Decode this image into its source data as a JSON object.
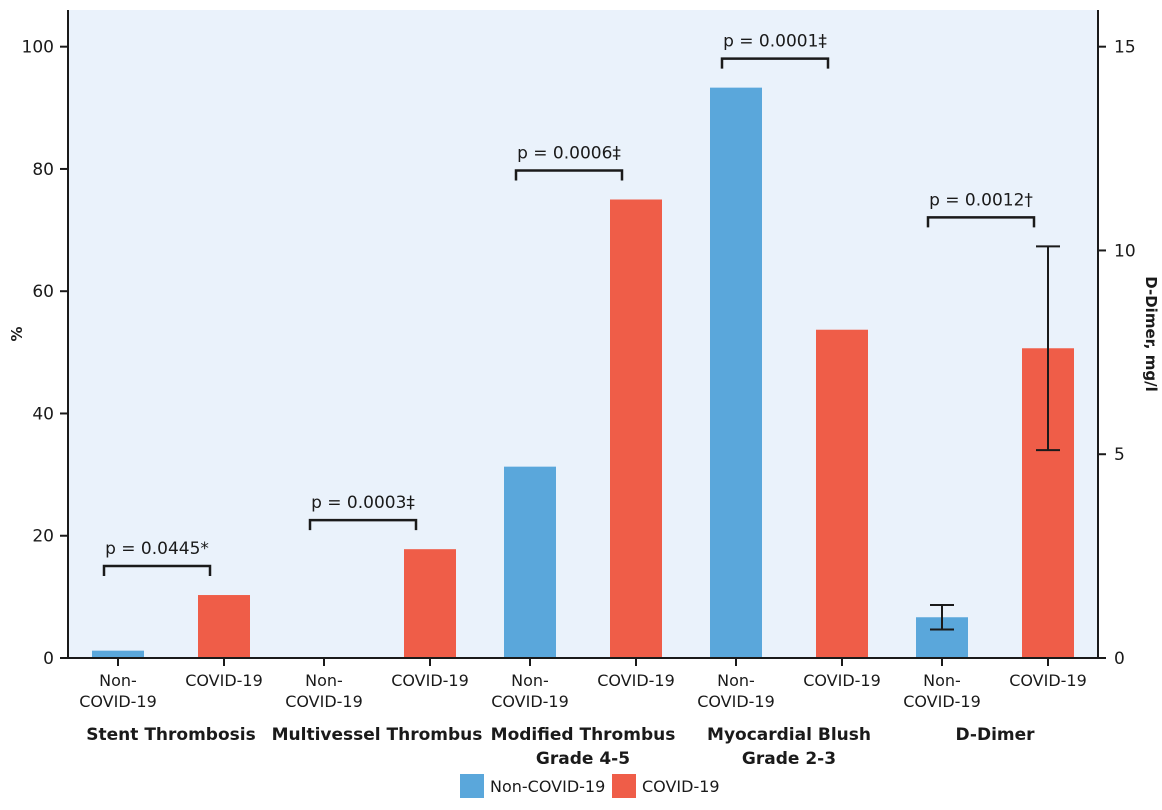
{
  "chart_data": {
    "type": "bar",
    "ylabel": "%",
    "y2label": "D-Dimer, mg/l",
    "ylim": [
      0,
      106
    ],
    "yticks": [
      0,
      20,
      40,
      60,
      80,
      100
    ],
    "y2lim": [
      0,
      15.9
    ],
    "y2ticks": [
      0,
      5,
      10,
      15
    ],
    "grid": false,
    "legend_position": "bottom-center",
    "colors": {
      "non_covid": "#5aa7db",
      "covid": "#ef5d48",
      "plot_bg": "#eaf2fb"
    },
    "bar_labels": [
      [
        "Non-",
        "COVID-19"
      ],
      [
        "COVID-19"
      ]
    ],
    "legend": [
      {
        "name": "Non-COVID-19",
        "color": "#5aa7db"
      },
      {
        "name": "COVID-19",
        "color": "#ef5d48"
      }
    ],
    "groups": [
      {
        "label": [
          "Stent Thrombosis"
        ],
        "axis": "left",
        "non_covid": 1.2,
        "covid": 10.3,
        "pvalue": "p = 0.0445*"
      },
      {
        "label": [
          "Multivessel Thrombus"
        ],
        "axis": "left",
        "non_covid": 0,
        "covid": 17.8,
        "pvalue": "p = 0.0003‡"
      },
      {
        "label": [
          "Modified Thrombus",
          "Grade 4-5"
        ],
        "axis": "left",
        "non_covid": 31.3,
        "covid": 75.0,
        "pvalue": "p = 0.0006‡"
      },
      {
        "label": [
          "Myocardial Blush",
          "Grade 2-3"
        ],
        "axis": "left",
        "non_covid": 93.3,
        "covid": 53.7,
        "pvalue": "p = 0.0001‡"
      },
      {
        "label": [
          "D-Dimer"
        ],
        "axis": "right",
        "non_covid": 1.0,
        "covid": 7.6,
        "non_covid_err": [
          0.7,
          1.3
        ],
        "covid_err": [
          5.1,
          10.1
        ],
        "pvalue": "p = 0.0012†"
      }
    ]
  }
}
